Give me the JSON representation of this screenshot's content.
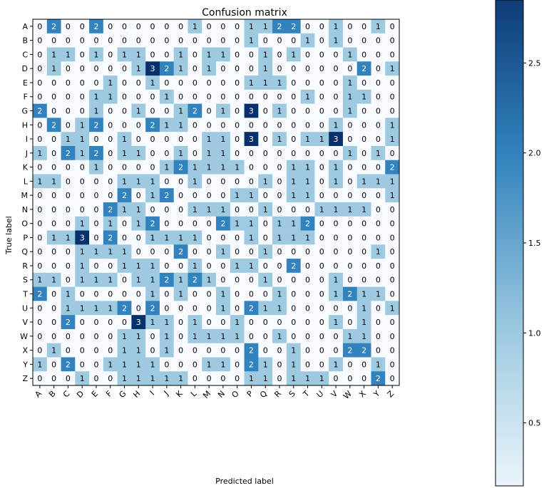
{
  "chart_data": {
    "type": "heatmap",
    "title": "Confusion matrix",
    "xlabel": "Predicted label",
    "ylabel": "True label",
    "x_categories": [
      "A",
      "B",
      "C",
      "D",
      "E",
      "F",
      "G",
      "H",
      "I",
      "J",
      "K",
      "L",
      "M",
      "N",
      "O",
      "P",
      "Q",
      "R",
      "S",
      "T",
      "U",
      "V",
      "W",
      "X",
      "Y",
      "Z"
    ],
    "y_categories": [
      "A",
      "B",
      "C",
      "D",
      "E",
      "F",
      "G",
      "H",
      "I",
      "J",
      "K",
      "L",
      "M",
      "N",
      "O",
      "P",
      "Q",
      "R",
      "S",
      "T",
      "U",
      "V",
      "W",
      "X",
      "Y",
      "Z"
    ],
    "matrix": [
      [
        0,
        2,
        0,
        0,
        2,
        0,
        0,
        0,
        0,
        0,
        0,
        1,
        0,
        0,
        0,
        1,
        1,
        2,
        2,
        0,
        0,
        1,
        0,
        0,
        1,
        0
      ],
      [
        0,
        0,
        0,
        0,
        0,
        0,
        0,
        0,
        0,
        0,
        0,
        0,
        0,
        0,
        0,
        1,
        0,
        0,
        0,
        1,
        0,
        1,
        0,
        0,
        0,
        0
      ],
      [
        0,
        1,
        1,
        0,
        1,
        0,
        1,
        1,
        0,
        0,
        1,
        0,
        1,
        1,
        0,
        0,
        1,
        0,
        1,
        0,
        0,
        0,
        1,
        0,
        0,
        0
      ],
      [
        0,
        1,
        0,
        0,
        0,
        0,
        0,
        1,
        3,
        2,
        1,
        0,
        1,
        0,
        0,
        0,
        1,
        0,
        0,
        0,
        0,
        0,
        0,
        2,
        0,
        1
      ],
      [
        0,
        0,
        0,
        0,
        0,
        1,
        0,
        0,
        1,
        0,
        0,
        0,
        0,
        0,
        0,
        1,
        1,
        1,
        0,
        0,
        0,
        0,
        1,
        0,
        0,
        0
      ],
      [
        0,
        0,
        0,
        0,
        1,
        1,
        0,
        0,
        0,
        1,
        0,
        0,
        0,
        0,
        0,
        0,
        0,
        0,
        0,
        1,
        0,
        0,
        1,
        1,
        0,
        0
      ],
      [
        2,
        0,
        0,
        0,
        1,
        0,
        0,
        1,
        0,
        0,
        1,
        2,
        0,
        1,
        0,
        3,
        0,
        1,
        0,
        0,
        0,
        0,
        1,
        0,
        0,
        0
      ],
      [
        0,
        2,
        0,
        1,
        2,
        0,
        0,
        0,
        2,
        1,
        1,
        0,
        0,
        0,
        0,
        0,
        0,
        0,
        0,
        0,
        0,
        1,
        0,
        0,
        0,
        1
      ],
      [
        0,
        0,
        1,
        1,
        0,
        0,
        1,
        0,
        0,
        0,
        0,
        0,
        1,
        1,
        0,
        3,
        0,
        1,
        0,
        1,
        1,
        3,
        0,
        0,
        0,
        1
      ],
      [
        1,
        0,
        2,
        1,
        2,
        0,
        1,
        1,
        0,
        0,
        1,
        0,
        1,
        1,
        0,
        0,
        0,
        0,
        0,
        0,
        0,
        0,
        1,
        0,
        1,
        0
      ],
      [
        0,
        0,
        0,
        0,
        1,
        0,
        0,
        0,
        0,
        1,
        2,
        1,
        1,
        1,
        1,
        0,
        0,
        0,
        1,
        1,
        0,
        1,
        0,
        0,
        0,
        2
      ],
      [
        1,
        1,
        0,
        0,
        0,
        0,
        1,
        1,
        1,
        0,
        0,
        1,
        0,
        0,
        0,
        0,
        1,
        0,
        1,
        1,
        0,
        1,
        0,
        1,
        1,
        1
      ],
      [
        0,
        0,
        0,
        0,
        0,
        0,
        2,
        0,
        1,
        2,
        0,
        0,
        0,
        0,
        1,
        1,
        0,
        0,
        1,
        1,
        0,
        0,
        0,
        0,
        0,
        1
      ],
      [
        0,
        0,
        0,
        0,
        0,
        2,
        1,
        1,
        0,
        0,
        0,
        1,
        1,
        1,
        0,
        0,
        1,
        0,
        0,
        0,
        1,
        1,
        1,
        1,
        0,
        0
      ],
      [
        0,
        0,
        0,
        1,
        0,
        1,
        0,
        1,
        2,
        0,
        0,
        0,
        0,
        2,
        1,
        1,
        0,
        1,
        1,
        2,
        0,
        0,
        0,
        0,
        0,
        0
      ],
      [
        0,
        1,
        1,
        3,
        0,
        2,
        0,
        0,
        1,
        1,
        1,
        1,
        0,
        0,
        0,
        1,
        0,
        1,
        1,
        1,
        0,
        0,
        0,
        0,
        0,
        0
      ],
      [
        0,
        0,
        0,
        1,
        1,
        1,
        1,
        0,
        0,
        0,
        2,
        0,
        0,
        1,
        0,
        0,
        1,
        0,
        0,
        0,
        0,
        0,
        0,
        0,
        1,
        0
      ],
      [
        0,
        0,
        0,
        1,
        0,
        0,
        1,
        1,
        1,
        0,
        0,
        1,
        0,
        0,
        1,
        1,
        0,
        0,
        2,
        0,
        0,
        0,
        0,
        0,
        0,
        0
      ],
      [
        1,
        1,
        0,
        1,
        1,
        1,
        0,
        1,
        1,
        2,
        1,
        2,
        1,
        0,
        0,
        0,
        1,
        0,
        0,
        0,
        0,
        1,
        0,
        0,
        0,
        0
      ],
      [
        2,
        0,
        1,
        0,
        0,
        0,
        0,
        0,
        1,
        0,
        1,
        0,
        0,
        1,
        0,
        0,
        0,
        1,
        0,
        0,
        0,
        1,
        2,
        1,
        1,
        0
      ],
      [
        0,
        0,
        1,
        1,
        1,
        1,
        2,
        0,
        2,
        0,
        0,
        0,
        0,
        1,
        0,
        2,
        1,
        1,
        0,
        0,
        0,
        0,
        0,
        1,
        0,
        1
      ],
      [
        0,
        0,
        2,
        0,
        0,
        0,
        0,
        3,
        1,
        1,
        0,
        1,
        0,
        0,
        1,
        0,
        0,
        0,
        0,
        0,
        0,
        1,
        0,
        1,
        0,
        0
      ],
      [
        0,
        0,
        0,
        0,
        0,
        0,
        1,
        1,
        0,
        1,
        0,
        1,
        1,
        1,
        1,
        0,
        0,
        1,
        0,
        0,
        0,
        0,
        1,
        1,
        0,
        0
      ],
      [
        0,
        1,
        0,
        0,
        0,
        0,
        1,
        1,
        0,
        1,
        0,
        0,
        0,
        0,
        0,
        2,
        0,
        0,
        1,
        0,
        0,
        0,
        2,
        2,
        0,
        0
      ],
      [
        1,
        0,
        2,
        0,
        0,
        1,
        1,
        1,
        1,
        0,
        0,
        0,
        1,
        1,
        0,
        2,
        1,
        0,
        1,
        0,
        0,
        1,
        0,
        0,
        1,
        0
      ],
      [
        0,
        0,
        0,
        1,
        0,
        0,
        1,
        1,
        1,
        1,
        1,
        0,
        0,
        0,
        0,
        1,
        1,
        0,
        1,
        1,
        1,
        0,
        0,
        0,
        2,
        0
      ]
    ],
    "colormap": [
      "#f7fbff",
      "#9ecae1",
      "#3182bd",
      "#08306b"
    ],
    "colorbar": {
      "range": [
        0.15,
        2.85
      ],
      "ticks": [
        0.5,
        1.0,
        1.5,
        2.0,
        2.5
      ],
      "tick_labels": [
        "0.5",
        "1.0",
        "1.5",
        "2.0",
        "2.5"
      ]
    },
    "grid": false,
    "legend": "colorbar-right"
  }
}
